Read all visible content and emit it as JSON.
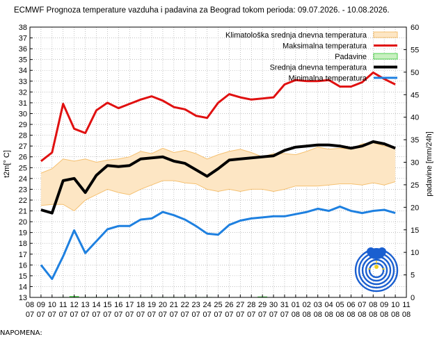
{
  "chart_data": {
    "type": "line",
    "title": "ECMWF Prognoza temperature vazduha i padavina za Beograd tokom perioda: 09.07.2026. - 10.08.2026.",
    "ylabel": "t2m[° C]",
    "y2label": "padavine [mm/24h]",
    "ylim": [
      13,
      38
    ],
    "y2lim": [
      0,
      60
    ],
    "yticks": [
      13,
      14,
      15,
      16,
      17,
      18,
      19,
      20,
      21,
      22,
      23,
      24,
      25,
      26,
      27,
      28,
      29,
      30,
      31,
      32,
      33,
      34,
      35,
      36,
      37,
      38
    ],
    "y2ticks": [
      0,
      5,
      10,
      15,
      20,
      25,
      30,
      35,
      40,
      45,
      50,
      55,
      60
    ],
    "grid": true,
    "legend_position": "top-right",
    "x_days": [
      "08",
      "09",
      "10",
      "11",
      "12",
      "13",
      "14",
      "15",
      "16",
      "17",
      "18",
      "19",
      "20",
      "21",
      "22",
      "23",
      "24",
      "25",
      "26",
      "27",
      "28",
      "29",
      "30",
      "31",
      "01",
      "02",
      "03",
      "04",
      "05",
      "06",
      "07",
      "08",
      "09",
      "10",
      "11"
    ],
    "x_months": [
      "07",
      "07",
      "07",
      "07",
      "07",
      "07",
      "07",
      "07",
      "07",
      "07",
      "07",
      "07",
      "07",
      "07",
      "07",
      "07",
      "07",
      "07",
      "07",
      "07",
      "07",
      "07",
      "07",
      "07",
      "08",
      "08",
      "08",
      "08",
      "08",
      "08",
      "08",
      "08",
      "08",
      "08",
      "08"
    ],
    "series": [
      {
        "name": "Klimatološka srednja dnevna temperatura",
        "kind": "band",
        "color": "#f5c070",
        "fill": "#fde6c4",
        "x_start": 1,
        "upper": [
          24.5,
          24.9,
          25.8,
          25.6,
          25.8,
          25.5,
          25.7,
          25.8,
          26.0,
          26.5,
          26.3,
          26.8,
          26.4,
          26.6,
          26.3,
          25.8,
          26.2,
          26.5,
          26.7,
          26.4,
          26.0,
          26.3,
          26.3,
          26.2,
          26.5,
          26.9,
          26.7,
          26.8,
          26.7,
          27.2,
          27.3,
          27.0,
          26.9
        ],
        "lower": [
          21.5,
          21.6,
          21.6,
          21.0,
          22.0,
          22.5,
          23.0,
          22.7,
          22.5,
          23.0,
          23.4,
          23.8,
          23.8,
          23.6,
          23.5,
          23.0,
          22.8,
          23.0,
          22.8,
          23.0,
          23.0,
          22.8,
          23.0,
          23.3,
          23.3,
          23.3,
          23.4,
          23.5,
          23.5,
          23.4,
          23.6,
          23.4,
          23.7
        ]
      },
      {
        "name": "Maksimalna temperatura",
        "kind": "line",
        "color": "#e01010",
        "x_start": 1,
        "values": [
          25.6,
          26.4,
          30.9,
          28.6,
          28.2,
          30.3,
          31.0,
          30.5,
          30.9,
          31.3,
          31.6,
          31.2,
          30.6,
          30.4,
          29.8,
          29.6,
          31.0,
          31.8,
          31.5,
          31.3,
          31.4,
          31.5,
          32.7,
          33.1,
          33.0,
          33.0,
          33.1,
          32.5,
          32.5,
          32.9,
          33.8,
          33.2,
          32.7
        ]
      },
      {
        "name": "Padavine",
        "kind": "bars",
        "color": "#50d050",
        "x_start": 1,
        "values": [
          0,
          0,
          0.1,
          0.3,
          0.1,
          0.1,
          0.1,
          0.1,
          0.1,
          0.1,
          0.1,
          0.1,
          0.1,
          0.1,
          0.1,
          0.1,
          0,
          0,
          0,
          0,
          0.2,
          0,
          0,
          0,
          0,
          0,
          0,
          0,
          0,
          0,
          0,
          0,
          0
        ]
      },
      {
        "name": "Srednja dnevna temperatura",
        "kind": "line",
        "color": "#000000",
        "x_start": 1,
        "values": [
          21.1,
          20.8,
          23.8,
          24.0,
          22.7,
          24.3,
          25.2,
          25.1,
          25.2,
          25.8,
          25.9,
          26.0,
          25.6,
          25.4,
          24.8,
          24.2,
          24.9,
          25.7,
          25.8,
          25.9,
          26.0,
          26.1,
          26.6,
          26.9,
          27.0,
          27.1,
          27.1,
          27.0,
          26.8,
          27.0,
          27.4,
          27.2,
          26.8
        ]
      },
      {
        "name": "Minimalna temperatura",
        "kind": "line",
        "color": "#1e80e0",
        "x_start": 1,
        "values": [
          16.0,
          14.7,
          16.8,
          19.2,
          17.1,
          18.2,
          19.3,
          19.6,
          19.6,
          20.2,
          20.3,
          20.9,
          20.6,
          20.2,
          19.6,
          18.9,
          18.8,
          19.7,
          20.1,
          20.3,
          20.4,
          20.5,
          20.5,
          20.7,
          20.9,
          21.2,
          21.0,
          21.4,
          21.0,
          20.8,
          21.0,
          21.1,
          20.8
        ]
      }
    ]
  },
  "note": "NAPOMENA:"
}
